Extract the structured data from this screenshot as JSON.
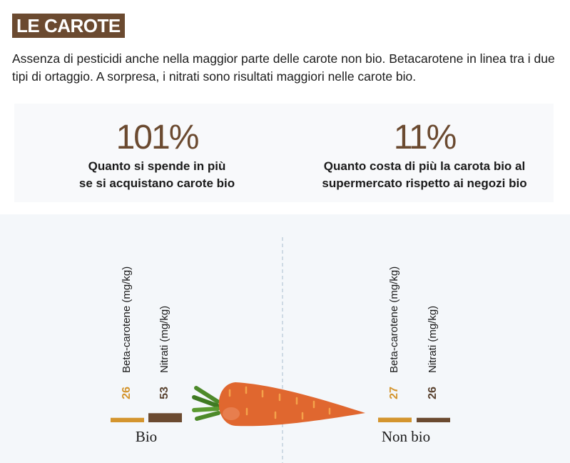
{
  "header": {
    "title": "LE CAROTE",
    "intro": "Assenza di pesticidi anche nella maggior parte delle carote non bio. Betacarotene in linea tra i due tipi di ortaggio. A sorpresa, i nitrati sono risultati maggiori nelle carote bio."
  },
  "stats": [
    {
      "value": "101%",
      "line1": "Quanto si spende in più",
      "line2": "se si acquistano carote bio"
    },
    {
      "value": "11%",
      "line1": "Quanto costa di più la carota bio al",
      "line2": "supermercato rispetto ai negozi bio"
    }
  ],
  "colors": {
    "brand": "#6b4a30",
    "beta": "#d4952e",
    "nitrati": "#6b4a30",
    "carrot": "#e0672f",
    "leaf": "#4d8a2a"
  },
  "chart_data": {
    "type": "bar",
    "categories": [
      "Bio",
      "Non bio"
    ],
    "series": [
      {
        "name": "Beta-carotene (mg/kg)",
        "values": [
          26,
          27
        ]
      },
      {
        "name": "Nitrati (mg/kg)",
        "values": [
          53,
          26
        ]
      }
    ]
  }
}
